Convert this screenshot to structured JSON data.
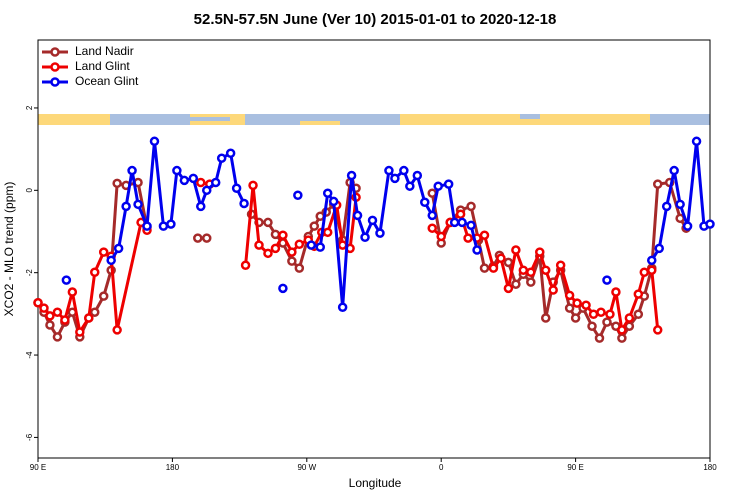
{
  "chart_data": {
    "type": "line",
    "title": "52.5N-57.5N June (Ver 10)   2015-01-01 to 2020-12-18",
    "xlabel": "Longitude",
    "ylabel": "XCO2 - MLO trend (ppm)",
    "xlim": [
      90,
      540
    ],
    "ylim": [
      -6.5,
      3.65
    ],
    "xticks": [
      {
        "value": 90,
        "label": "90 E"
      },
      180,
      {
        "value": 270,
        "label": "90 W"
      },
      {
        "value": 360,
        "label": "0"
      },
      {
        "value": 450,
        "label": "90 E"
      },
      {
        "value": 540,
        "label": "180"
      }
    ],
    "yticks": [
      -6,
      -4,
      -2,
      0,
      2
    ],
    "legend": "top-left",
    "series": [
      {
        "name": "Land Nadir",
        "color": "#a52a2a",
        "x": [
          90,
          94,
          98,
          103,
          108,
          113,
          118,
          124,
          128,
          134,
          139,
          143,
          149,
          157,
          163,
          null,
          197,
          203,
          null,
          233,
          238,
          244,
          249,
          254,
          260,
          265,
          271,
          275,
          279,
          283,
          288,
          294,
          299,
          303,
          null,
          354,
          360,
          366,
          373,
          380,
          385,
          389,
          395,
          399,
          405,
          410,
          415,
          420,
          426,
          430,
          435,
          440,
          446,
          450,
          455,
          461,
          466,
          471,
          477,
          481,
          486,
          492,
          496,
          501,
          505,
          513,
          520,
          524
        ],
        "values": [
          -2.73,
          -2.96,
          -3.27,
          -3.56,
          -3.2,
          -2.96,
          -3.56,
          -3.1,
          -2.96,
          -2.57,
          -1.94,
          0.17,
          0.12,
          0.19,
          -0.9,
          null,
          -1.16,
          -1.16,
          null,
          -0.58,
          -0.78,
          -0.78,
          -1.07,
          -1.28,
          -1.72,
          -1.89,
          -1.12,
          -0.87,
          -0.63,
          -0.53,
          -0.34,
          -1.21,
          0.19,
          0.05,
          null,
          -0.07,
          -1.28,
          -0.78,
          -0.48,
          -0.39,
          -1.21,
          -1.89,
          -1.84,
          -1.58,
          -1.75,
          -2.28,
          -2.04,
          -2.23,
          -1.6,
          -3.1,
          -2.23,
          -1.94,
          -2.86,
          -3.1,
          -2.86,
          -3.3,
          -3.59,
          -3.2,
          -3.3,
          -3.59,
          -3.3,
          -3.01,
          -2.57,
          -1.89,
          0.15,
          0.19,
          -0.68,
          -0.92
        ]
      },
      {
        "name": "Land Glint",
        "color": "#ee0000",
        "x": [
          90,
          94,
          98,
          103,
          108,
          113,
          118,
          124,
          128,
          134,
          139,
          143,
          159,
          163,
          null,
          199,
          205,
          null,
          229,
          234,
          238,
          244,
          249,
          254,
          260,
          265,
          271,
          275,
          280,
          284,
          290,
          294,
          299,
          303,
          null,
          354,
          360,
          366,
          373,
          378,
          384,
          389,
          395,
          400,
          405,
          410,
          415,
          420,
          426,
          430,
          435,
          440,
          446,
          451,
          457,
          462,
          467,
          473,
          477,
          481,
          486,
          492,
          496,
          501,
          505
        ],
        "values": [
          -2.73,
          -2.86,
          -3.05,
          -2.96,
          -3.15,
          -2.47,
          -3.44,
          -3.1,
          -1.99,
          -1.5,
          -1.6,
          -3.39,
          -0.78,
          -0.97,
          null,
          0.19,
          0.15,
          null,
          -1.82,
          0.12,
          -1.33,
          -1.53,
          -1.41,
          -1.09,
          -1.5,
          -1.31,
          -1.21,
          -1.36,
          -1.02,
          -1.02,
          -0.36,
          -1.33,
          -1.41,
          -0.17,
          null,
          -0.92,
          -1.12,
          -0.78,
          -0.58,
          -1.16,
          -1.16,
          -1.09,
          -1.89,
          -1.65,
          -2.38,
          -1.45,
          -1.94,
          -1.99,
          -1.5,
          -1.94,
          -2.42,
          -1.82,
          -2.55,
          -2.74,
          -2.79,
          -3.01,
          -2.96,
          -3.01,
          -2.47,
          -3.39,
          -3.1,
          -2.52,
          -1.99,
          -1.94,
          -3.39
        ]
      },
      {
        "name": "Ocean Glint",
        "color": "#0000ee",
        "x": [
          109,
          null,
          139,
          144,
          149,
          153,
          157,
          163,
          168,
          174,
          179,
          183,
          188,
          194,
          199,
          203,
          209,
          213,
          219,
          223,
          228,
          null,
          254,
          null,
          264,
          null,
          273,
          279,
          284,
          288,
          294,
          300,
          304,
          309,
          314,
          319,
          325,
          329,
          335,
          339,
          344,
          349,
          354,
          358,
          365,
          369,
          374,
          380,
          384,
          null,
          471,
          null,
          501,
          506,
          511,
          516,
          520,
          525,
          531,
          536,
          540
        ],
        "values": [
          -2.18,
          null,
          -1.7,
          -1.41,
          -0.39,
          0.48,
          -0.34,
          -0.87,
          1.19,
          -0.87,
          -0.82,
          0.48,
          0.24,
          0.29,
          -0.39,
          0,
          0.19,
          0.78,
          0.9,
          0.05,
          -0.32,
          null,
          -2.38,
          null,
          -0.12,
          null,
          -1.33,
          -1.38,
          -0.07,
          -0.27,
          -2.84,
          0.36,
          -0.61,
          -1.14,
          -0.73,
          -1.04,
          0.48,
          0.29,
          0.48,
          0.1,
          0.36,
          -0.29,
          -0.61,
          0.1,
          0.15,
          -0.78,
          -0.78,
          -0.85,
          -1.45,
          null,
          -2.18,
          null,
          -1.7,
          -1.41,
          -0.39,
          0.48,
          -0.34,
          -0.87,
          1.19,
          -0.87,
          -0.82
        ]
      }
    ]
  }
}
